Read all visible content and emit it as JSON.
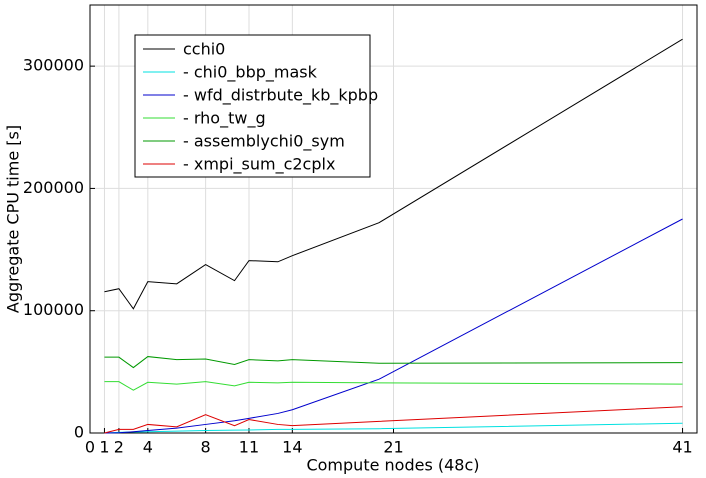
{
  "chart_data": {
    "type": "line",
    "xlabel": "Compute nodes (48c)",
    "ylabel": "Aggregate CPU time [s]",
    "x": [
      1,
      2,
      3,
      4,
      6,
      8,
      10,
      11,
      13,
      14,
      20,
      41
    ],
    "xlim": [
      0,
      42
    ],
    "xticks": [
      0,
      1,
      2,
      4,
      8,
      11,
      14,
      21,
      41
    ],
    "ylim": [
      0,
      350000
    ],
    "yticks": [
      0,
      100000,
      200000,
      300000
    ],
    "grid": true,
    "legend": "upper left",
    "series": [
      {
        "name": "cchi0",
        "color": "#000000",
        "values": [
          115500,
          118000,
          101600,
          123800,
          122000,
          137700,
          124600,
          141000,
          140000,
          145000,
          172000,
          322000
        ]
      },
      {
        "name": "- chi0_bbp_mask",
        "color": "#00e0e0",
        "values": [
          0,
          500,
          800,
          1000,
          1500,
          2000,
          2300,
          2500,
          3000,
          3000,
          3500,
          8000
        ]
      },
      {
        "name": "- wfd_distrbute_kb_kpbp",
        "color": "#0000cc",
        "values": [
          0,
          200,
          1000,
          2000,
          4000,
          7000,
          10000,
          12000,
          16000,
          19000,
          44000,
          175000
        ]
      },
      {
        "name": "- rho_tw_g",
        "color": "#33dd33",
        "values": [
          42000,
          42000,
          35000,
          41500,
          40000,
          42000,
          38500,
          41500,
          41000,
          41500,
          41000,
          40000
        ]
      },
      {
        "name": "- assemblychi0_sym",
        "color": "#009900",
        "values": [
          62000,
          62000,
          53500,
          62500,
          60000,
          60500,
          56000,
          60000,
          59000,
          60000,
          57000,
          57500
        ]
      },
      {
        "name": "- xmpi_sum_c2cplx",
        "color": "#dd0000",
        "values": [
          0,
          3000,
          3000,
          7000,
          5000,
          15000,
          6000,
          11000,
          7000,
          6000,
          9500,
          21500
        ]
      }
    ]
  }
}
